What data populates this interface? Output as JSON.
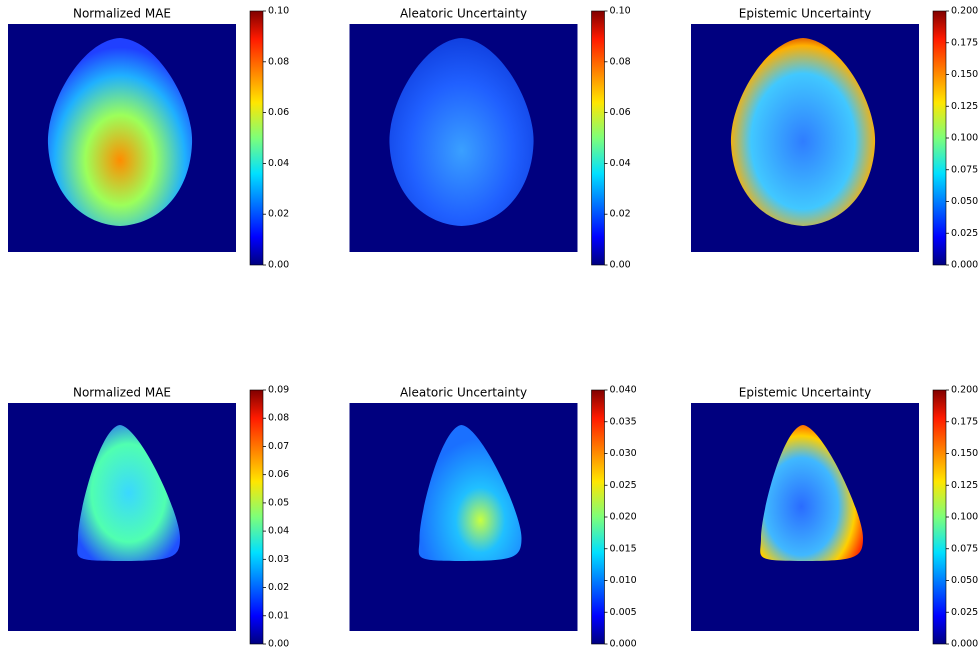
{
  "chart_data": [
    {
      "type": "heatmap",
      "title": "Normalized MAE",
      "clim": [
        0,
        0.1
      ],
      "cticks": [
        {
          "value": 0,
          "label": "0.00"
        },
        0.02,
        0.04,
        0.06,
        0.08,
        {
          "value": 0.1,
          "label": "0.10"
        }
      ]
    },
    {
      "type": "heatmap",
      "title": "Aleatoric Uncertainty",
      "clim": [
        0,
        0.1
      ],
      "cticks": [
        {
          "value": 0,
          "label": "0.00"
        },
        0.02,
        0.04,
        0.06,
        0.08,
        {
          "value": 0.1,
          "label": "0.10"
        }
      ]
    },
    {
      "type": "heatmap",
      "title": "Epistemic Uncertainty",
      "clim": [
        0,
        0.2
      ],
      "cticks": [
        {
          "value": 0,
          "label": "0.000"
        },
        0.025,
        {
          "value": 0.05,
          "label": "0.050"
        },
        0.075,
        {
          "value": 0.1,
          "label": "0.100"
        },
        0.125,
        {
          "value": 0.15,
          "label": "0.150"
        },
        0.175,
        {
          "value": 0.2,
          "label": "0.200"
        }
      ]
    },
    {
      "type": "heatmap",
      "title": "Normalized MAE",
      "clim": [
        0,
        0.09
      ],
      "cticks": [
        {
          "value": 0,
          "label": "0.00"
        },
        0.01,
        0.02,
        0.03,
        0.04,
        0.05,
        0.06,
        0.07,
        0.08,
        0.09
      ]
    },
    {
      "type": "heatmap",
      "title": "Aleatoric Uncertainty",
      "clim": [
        0,
        0.04
      ],
      "cticks": [
        {
          "value": 0,
          "label": "0.000"
        },
        0.005,
        {
          "value": 0.01,
          "label": "0.010"
        },
        0.015,
        {
          "value": 0.02,
          "label": "0.020"
        },
        0.025,
        {
          "value": 0.03,
          "label": "0.030"
        },
        0.035,
        {
          "value": 0.04,
          "label": "0.040"
        }
      ]
    },
    {
      "type": "heatmap",
      "title": "Epistemic Uncertainty",
      "clim": [
        0,
        0.2
      ],
      "cticks": [
        {
          "value": 0,
          "label": "0.000"
        },
        0.025,
        {
          "value": 0.05,
          "label": "0.050"
        },
        0.075,
        {
          "value": 0.1,
          "label": "0.100"
        },
        0.125,
        {
          "value": 0.15,
          "label": "0.150"
        },
        0.175,
        {
          "value": 0.2,
          "label": "0.200"
        }
      ]
    }
  ]
}
